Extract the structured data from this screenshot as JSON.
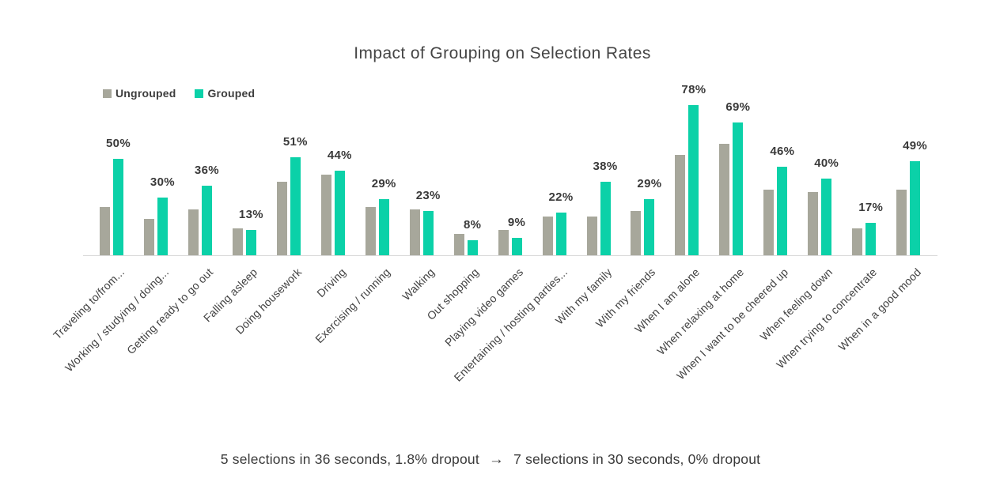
{
  "title": "Impact of Grouping on Selection Rates",
  "legend": {
    "items": [
      {
        "label": "Ungrouped",
        "color": "#a7a79b"
      },
      {
        "label": "Grouped",
        "color": "#0bd1a8"
      }
    ]
  },
  "caption": {
    "before": "5 selections in 36 seconds, 1.8% dropout",
    "arrow": "→",
    "after": "7 selections in 30 seconds, 0% dropout"
  },
  "colors": {
    "ungrouped": "#a7a79b",
    "grouped": "#0bd1a8",
    "axis_line": "#d9d9d9",
    "text": "#3d3d3d"
  },
  "chart_data": {
    "type": "bar",
    "title": "Impact of Grouping on Selection Rates",
    "categories": [
      "Traveling to/from...",
      "Working / studying / doing...",
      "Getting ready to go out",
      "Falling asleep",
      "Doing housework",
      "Driving",
      "Exercising / running",
      "Walking",
      "Out shopping",
      "Playing video games",
      "Entertaining / hosting parties...",
      "With my family",
      "With my friends",
      "When I am alone",
      "When relaxing at home",
      "When I want to be cheered up",
      "When feeling down",
      "When trying to concentrate",
      "When in a good mood"
    ],
    "series": [
      {
        "name": "Ungrouped",
        "color": "#a7a79b",
        "values": [
          25,
          19,
          24,
          14,
          38,
          42,
          25,
          24,
          11,
          13,
          20,
          20,
          23,
          52,
          58,
          34,
          33,
          14,
          34
        ]
      },
      {
        "name": "Grouped",
        "color": "#0bd1a8",
        "values": [
          50,
          30,
          36,
          13,
          51,
          44,
          29,
          23,
          8,
          9,
          22,
          38,
          29,
          78,
          69,
          46,
          40,
          17,
          49
        ],
        "data_labels": [
          "50%",
          "30%",
          "36%",
          "13%",
          "51%",
          "44%",
          "29%",
          "23%",
          "8%",
          "9%",
          "22%",
          "38%",
          "29%",
          "78%",
          "69%",
          "46%",
          "40%",
          "17%",
          "49%"
        ]
      }
    ],
    "xlabel": "",
    "ylabel": "",
    "ylim": [
      0,
      85
    ],
    "grid": false,
    "legend_position": "top-left",
    "data_label_series": "Grouped"
  }
}
